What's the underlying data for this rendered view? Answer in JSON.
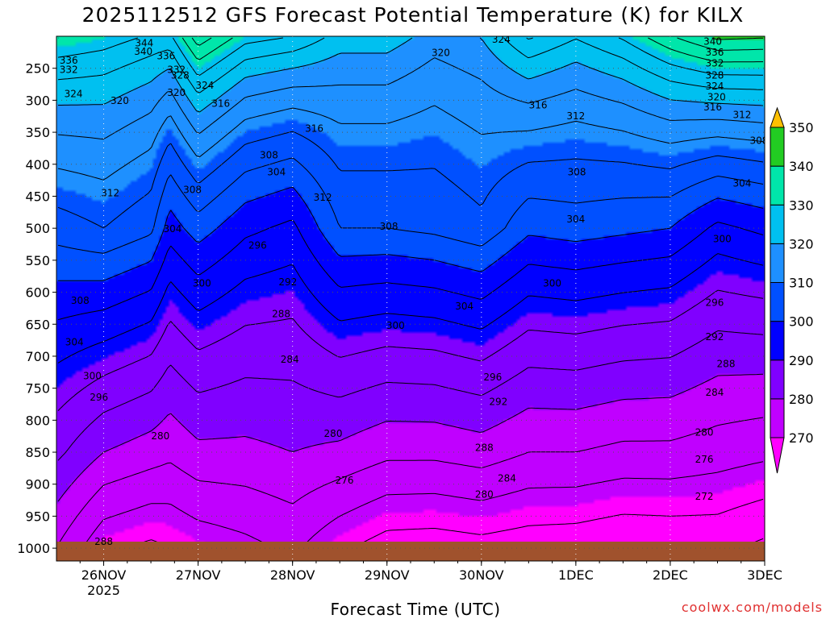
{
  "title": "2025112512 GFS Forecast Potential Temperature (K) for KILX",
  "xlabel": "Forecast Time (UTC)",
  "credit": "coolwx.com/models",
  "chart_data": {
    "type": "heatmap",
    "title": "2025112512 GFS Forecast Potential Temperature (K) for KILX",
    "xlabel": "Forecast Time (UTC)",
    "ylabel": "",
    "x_ticks": [
      {
        "label": "26NOV",
        "sub": "2025",
        "day": 0.5
      },
      {
        "label": "27NOV",
        "sub": "",
        "day": 1.5
      },
      {
        "label": "28NOV",
        "sub": "",
        "day": 2.5
      },
      {
        "label": "29NOV",
        "sub": "",
        "day": 3.5
      },
      {
        "label": "30NOV",
        "sub": "",
        "day": 4.5
      },
      {
        "label": "1DEC",
        "sub": "",
        "day": 5.5
      },
      {
        "label": "2DEC",
        "sub": "",
        "day": 6.5
      },
      {
        "label": "3DEC",
        "sub": "",
        "day": 7.5
      }
    ],
    "y_ticks": [
      250,
      300,
      350,
      400,
      450,
      500,
      550,
      600,
      650,
      700,
      750,
      800,
      850,
      900,
      950,
      1000
    ],
    "y_range_hpa": [
      200,
      1020
    ],
    "colorbar": {
      "labels": [
        270,
        280,
        290,
        300,
        310,
        320,
        330,
        340,
        350
      ],
      "colors": [
        "#ff00ff",
        "#c000ff",
        "#8000ff",
        "#0000ff",
        "#0050ff",
        "#1e90ff",
        "#00c0f0",
        "#00e6aa",
        "#22cc22",
        "#ffff00",
        "#ffc000"
      ]
    },
    "profiles": [
      {
        "day": 0.0,
        "t250": 326,
        "t500": 306,
        "t850": 285
      },
      {
        "day": 0.5,
        "t250": 325,
        "t500": 308,
        "t850": 280
      },
      {
        "day": 1.0,
        "t250": 322,
        "t500": 305,
        "t850": 278
      },
      {
        "day": 1.2,
        "t250": 320,
        "t500": 298,
        "t850": 277
      },
      {
        "day": 1.5,
        "t250": 330,
        "t500": 302,
        "t850": 279
      },
      {
        "day": 2.0,
        "t250": 322,
        "t500": 297,
        "t850": 279
      },
      {
        "day": 2.5,
        "t250": 320,
        "t500": 295,
        "t850": 280
      },
      {
        "day": 3.0,
        "t250": 318,
        "t500": 304,
        "t850": 279
      },
      {
        "day": 3.5,
        "t250": 318,
        "t500": 304,
        "t850": 277
      },
      {
        "day": 4.0,
        "t250": 315,
        "t500": 305,
        "t850": 277
      },
      {
        "day": 4.5,
        "t250": 317,
        "t500": 307,
        "t850": 278
      },
      {
        "day": 5.0,
        "t250": 322,
        "t500": 301,
        "t850": 276
      },
      {
        "day": 5.5,
        "t250": 319,
        "t500": 302,
        "t850": 276
      },
      {
        "day": 6.0,
        "t250": 322,
        "t500": 301,
        "t850": 275
      },
      {
        "day": 6.5,
        "t250": 327,
        "t500": 300,
        "t850": 275
      },
      {
        "day": 7.0,
        "t250": 330,
        "t500": 295,
        "t850": 274
      },
      {
        "day": 7.5,
        "t250": 330,
        "t500": 297,
        "t850": 273
      }
    ],
    "contour_labels": [
      {
        "v": 344,
        "day": 0.93,
        "p": 211
      },
      {
        "v": 340,
        "day": 0.92,
        "p": 224
      },
      {
        "v": 336,
        "day": 1.16,
        "p": 231
      },
      {
        "v": 336,
        "day": 0.13,
        "p": 238
      },
      {
        "v": 332,
        "day": 0.13,
        "p": 252
      },
      {
        "v": 332,
        "day": 1.27,
        "p": 252
      },
      {
        "v": 328,
        "day": 1.31,
        "p": 261
      },
      {
        "v": 324,
        "day": 1.57,
        "p": 277
      },
      {
        "v": 320,
        "day": 1.27,
        "p": 288
      },
      {
        "v": 324,
        "day": 0.18,
        "p": 290
      },
      {
        "v": 320,
        "day": 0.67,
        "p": 301
      },
      {
        "v": 316,
        "day": 1.74,
        "p": 305
      },
      {
        "v": 316,
        "day": 2.73,
        "p": 344
      },
      {
        "v": 308,
        "day": 2.25,
        "p": 386
      },
      {
        "v": 304,
        "day": 2.33,
        "p": 412
      },
      {
        "v": 312,
        "day": 0.57,
        "p": 445
      },
      {
        "v": 308,
        "day": 1.44,
        "p": 440
      },
      {
        "v": 312,
        "day": 2.82,
        "p": 452
      },
      {
        "v": 304,
        "day": 1.23,
        "p": 501
      },
      {
        "v": 296,
        "day": 2.13,
        "p": 527
      },
      {
        "v": 308,
        "day": 3.52,
        "p": 497
      },
      {
        "v": 300,
        "day": 1.54,
        "p": 586
      },
      {
        "v": 292,
        "day": 2.45,
        "p": 584
      },
      {
        "v": 308,
        "day": 0.25,
        "p": 613
      },
      {
        "v": 288,
        "day": 2.38,
        "p": 634
      },
      {
        "v": 300,
        "day": 3.59,
        "p": 652
      },
      {
        "v": 304,
        "day": 4.32,
        "p": 622
      },
      {
        "v": 304,
        "day": 0.19,
        "p": 678
      },
      {
        "v": 284,
        "day": 2.47,
        "p": 705
      },
      {
        "v": 300,
        "day": 0.38,
        "p": 731
      },
      {
        "v": 296,
        "day": 0.45,
        "p": 764
      },
      {
        "v": 280,
        "day": 1.1,
        "p": 825
      },
      {
        "v": 280,
        "day": 2.93,
        "p": 821
      },
      {
        "v": 296,
        "day": 4.62,
        "p": 733
      },
      {
        "v": 292,
        "day": 4.68,
        "p": 771
      },
      {
        "v": 288,
        "day": 4.53,
        "p": 843
      },
      {
        "v": 276,
        "day": 3.05,
        "p": 894
      },
      {
        "v": 284,
        "day": 4.77,
        "p": 891
      },
      {
        "v": 280,
        "day": 4.53,
        "p": 916
      },
      {
        "v": 288,
        "day": 0.5,
        "p": 990
      },
      {
        "v": 320,
        "day": 4.07,
        "p": 226
      },
      {
        "v": 324,
        "day": 4.71,
        "p": 205
      },
      {
        "v": 340,
        "day": 6.95,
        "p": 208
      },
      {
        "v": 336,
        "day": 6.97,
        "p": 225
      },
      {
        "v": 332,
        "day": 6.97,
        "p": 242
      },
      {
        "v": 328,
        "day": 6.97,
        "p": 261
      },
      {
        "v": 324,
        "day": 6.97,
        "p": 278
      },
      {
        "v": 320,
        "day": 6.99,
        "p": 295
      },
      {
        "v": 316,
        "day": 6.95,
        "p": 311
      },
      {
        "v": 312,
        "day": 7.26,
        "p": 323
      },
      {
        "v": 316,
        "day": 5.1,
        "p": 308
      },
      {
        "v": 312,
        "day": 5.5,
        "p": 325
      },
      {
        "v": 308,
        "day": 7.44,
        "p": 363
      },
      {
        "v": 308,
        "day": 5.51,
        "p": 412
      },
      {
        "v": 304,
        "day": 7.26,
        "p": 430
      },
      {
        "v": 304,
        "day": 5.5,
        "p": 486
      },
      {
        "v": 300,
        "day": 7.05,
        "p": 517
      },
      {
        "v": 300,
        "day": 5.25,
        "p": 586
      },
      {
        "v": 296,
        "day": 6.97,
        "p": 616
      },
      {
        "v": 292,
        "day": 6.97,
        "p": 670
      },
      {
        "v": 288,
        "day": 7.09,
        "p": 712
      },
      {
        "v": 284,
        "day": 6.97,
        "p": 757
      },
      {
        "v": 280,
        "day": 6.86,
        "p": 819
      },
      {
        "v": 276,
        "day": 6.86,
        "p": 861
      },
      {
        "v": 272,
        "day": 6.86,
        "p": 919
      }
    ]
  }
}
